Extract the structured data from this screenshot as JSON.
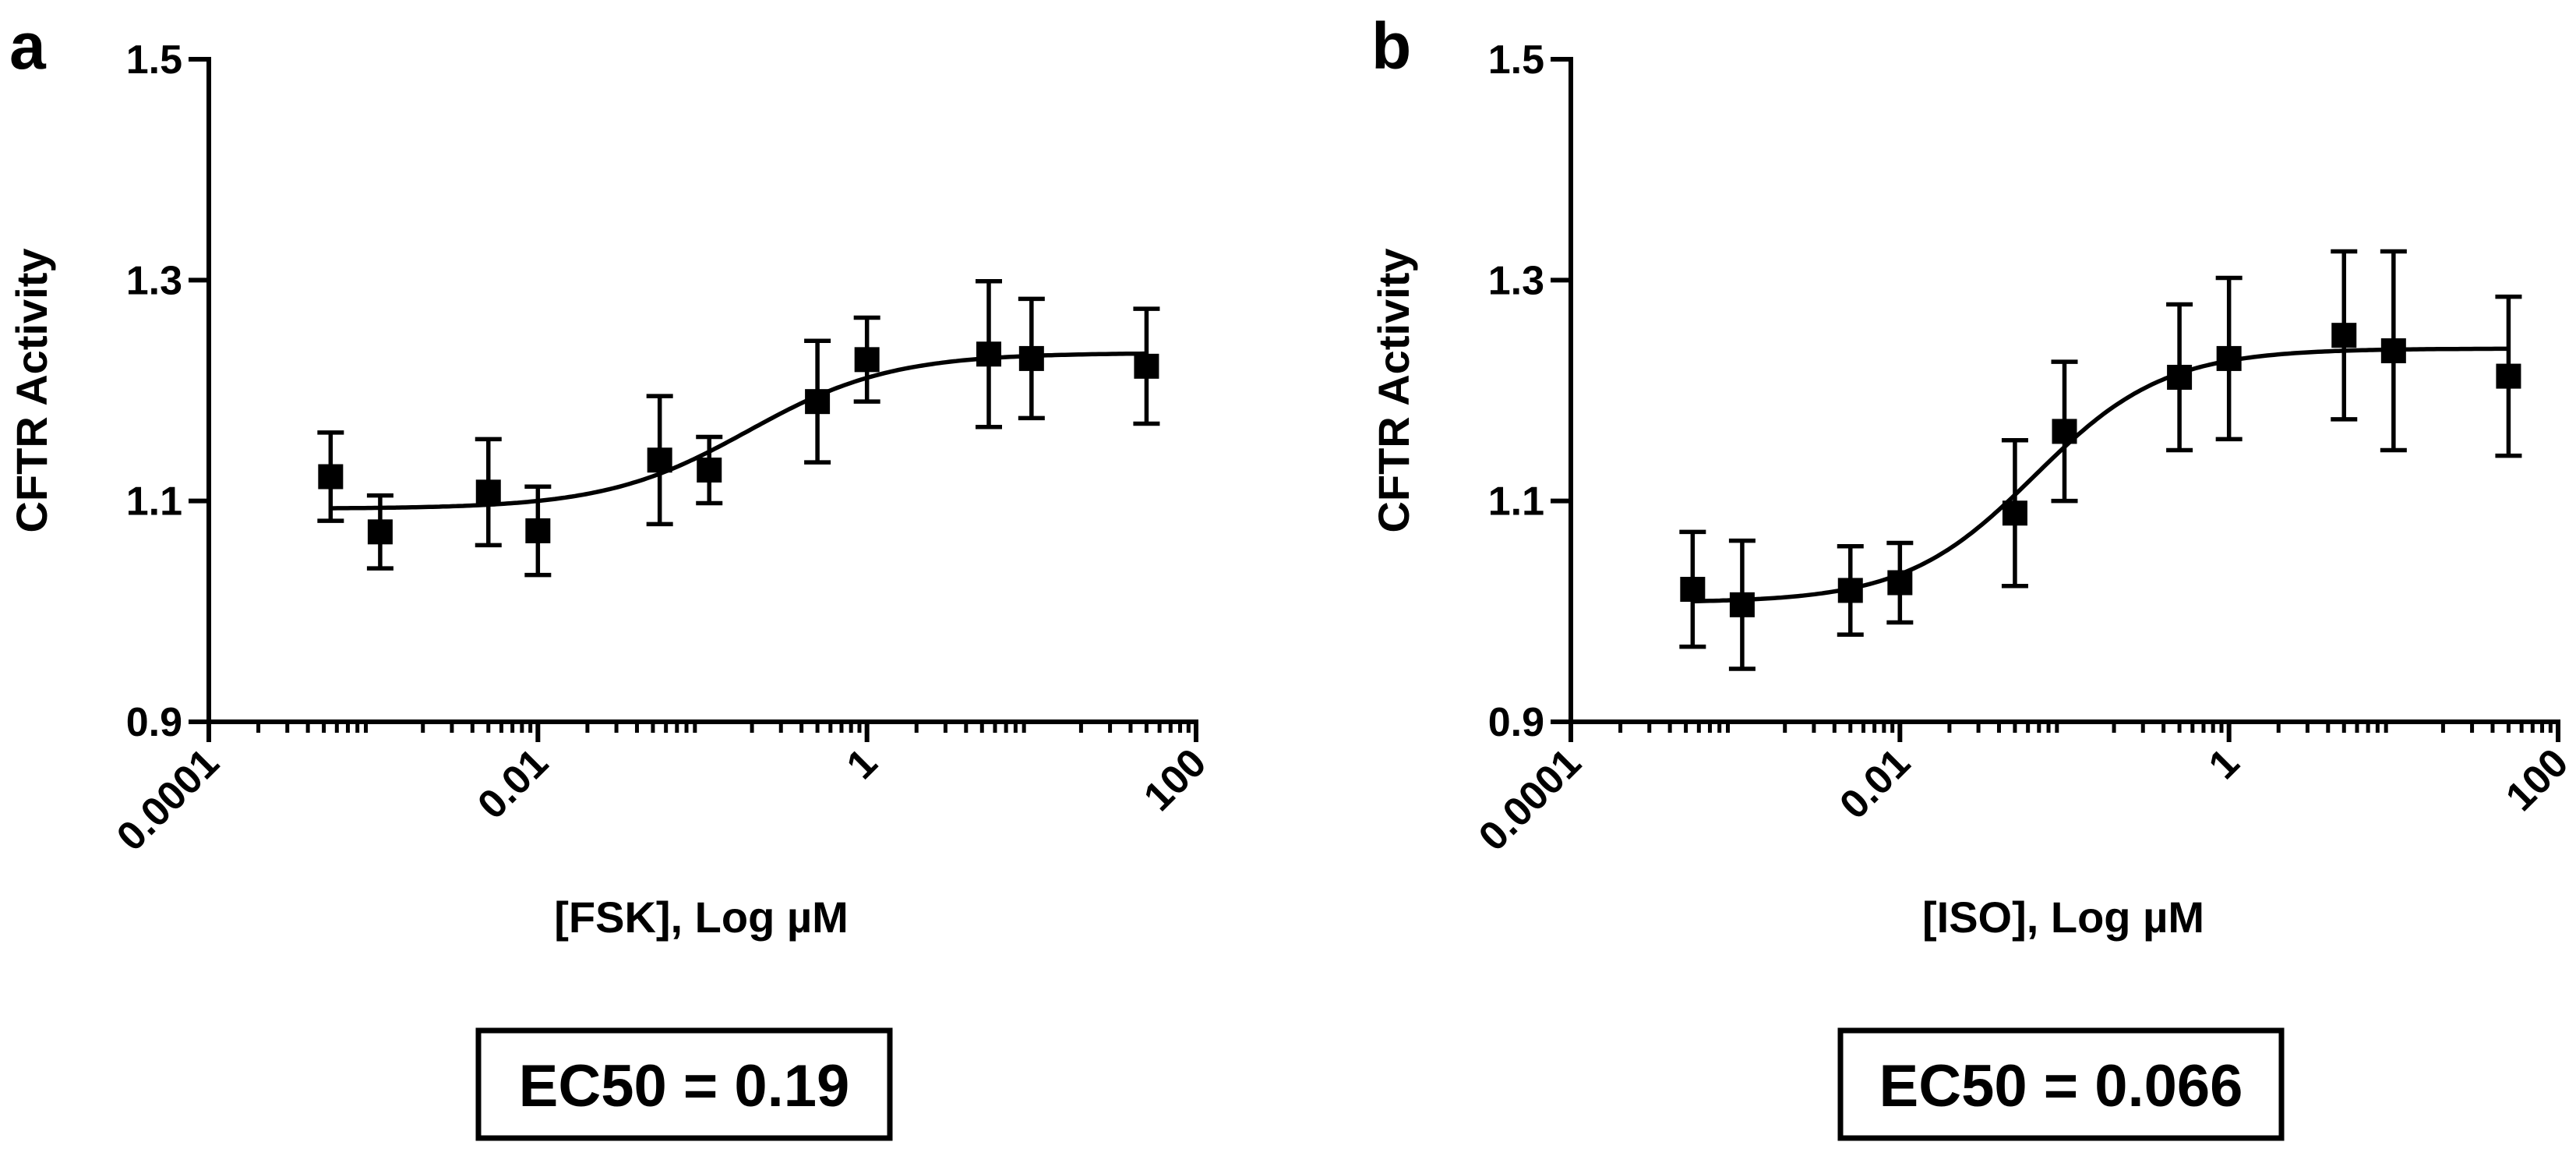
{
  "chart_data": [
    {
      "type": "scatter",
      "panel_label": "a",
      "title": "",
      "xlabel": "[FSK], Log µM",
      "ylabel": "CFTR Activity",
      "xscale": "log10",
      "xlim": [
        0.0001,
        100
      ],
      "ylim": [
        0.9,
        1.5
      ],
      "xticks": [
        0.0001,
        0.01,
        1,
        100
      ],
      "xtick_labels": [
        "0.0001",
        "0.01",
        "1",
        "100"
      ],
      "yticks": [
        0.9,
        1.1,
        1.3,
        1.5
      ],
      "ytick_labels": [
        "0.9",
        "1.1",
        "1.3",
        "1.5"
      ],
      "grid": false,
      "series": [
        {
          "name": "FSK",
          "marker": "square",
          "x": [
            0.00055,
            0.0011,
            0.005,
            0.01,
            0.055,
            0.11,
            0.5,
            1.0,
            5.5,
            10.0,
            50.0
          ],
          "y": [
            1.122,
            1.072,
            1.108,
            1.073,
            1.137,
            1.128,
            1.19,
            1.228,
            1.233,
            1.229,
            1.222
          ],
          "err": [
            0.04,
            0.033,
            0.048,
            0.04,
            0.058,
            0.03,
            0.055,
            0.038,
            0.066,
            0.054,
            0.052
          ]
        }
      ],
      "fit": {
        "model": "sigmoidal dose-response",
        "bottom": 1.093,
        "top": 1.234,
        "ec50": 0.19,
        "hill": 1.0
      },
      "annotation": "EC50 = 0.19"
    },
    {
      "type": "scatter",
      "panel_label": "b",
      "title": "",
      "xlabel": "[ISO], Log µM",
      "ylabel": "CFTR Activity",
      "xscale": "log10",
      "xlim": [
        0.0001,
        100
      ],
      "ylim": [
        0.9,
        1.5
      ],
      "xticks": [
        0.0001,
        0.01,
        1,
        100
      ],
      "xtick_labels": [
        "0.0001",
        "0.01",
        "1",
        "100"
      ],
      "yticks": [
        0.9,
        1.1,
        1.3,
        1.5
      ],
      "ytick_labels": [
        "0.9",
        "1.1",
        "1.3",
        "1.5"
      ],
      "grid": false,
      "series": [
        {
          "name": "ISO",
          "marker": "square",
          "x": [
            0.00055,
            0.0011,
            0.005,
            0.01,
            0.05,
            0.1,
            0.5,
            1.0,
            5.0,
            10.0,
            50.0
          ],
          "y": [
            1.02,
            1.006,
            1.019,
            1.026,
            1.089,
            1.163,
            1.212,
            1.229,
            1.25,
            1.236,
            1.213
          ],
          "err": [
            0.052,
            0.058,
            0.04,
            0.036,
            0.066,
            0.063,
            0.066,
            0.073,
            0.076,
            0.09,
            0.072
          ]
        }
      ],
      "fit": {
        "model": "sigmoidal dose-response",
        "bottom": 1.008,
        "top": 1.238,
        "ec50": 0.066,
        "hill": 1.1
      },
      "annotation": "EC50 = 0.066"
    }
  ]
}
